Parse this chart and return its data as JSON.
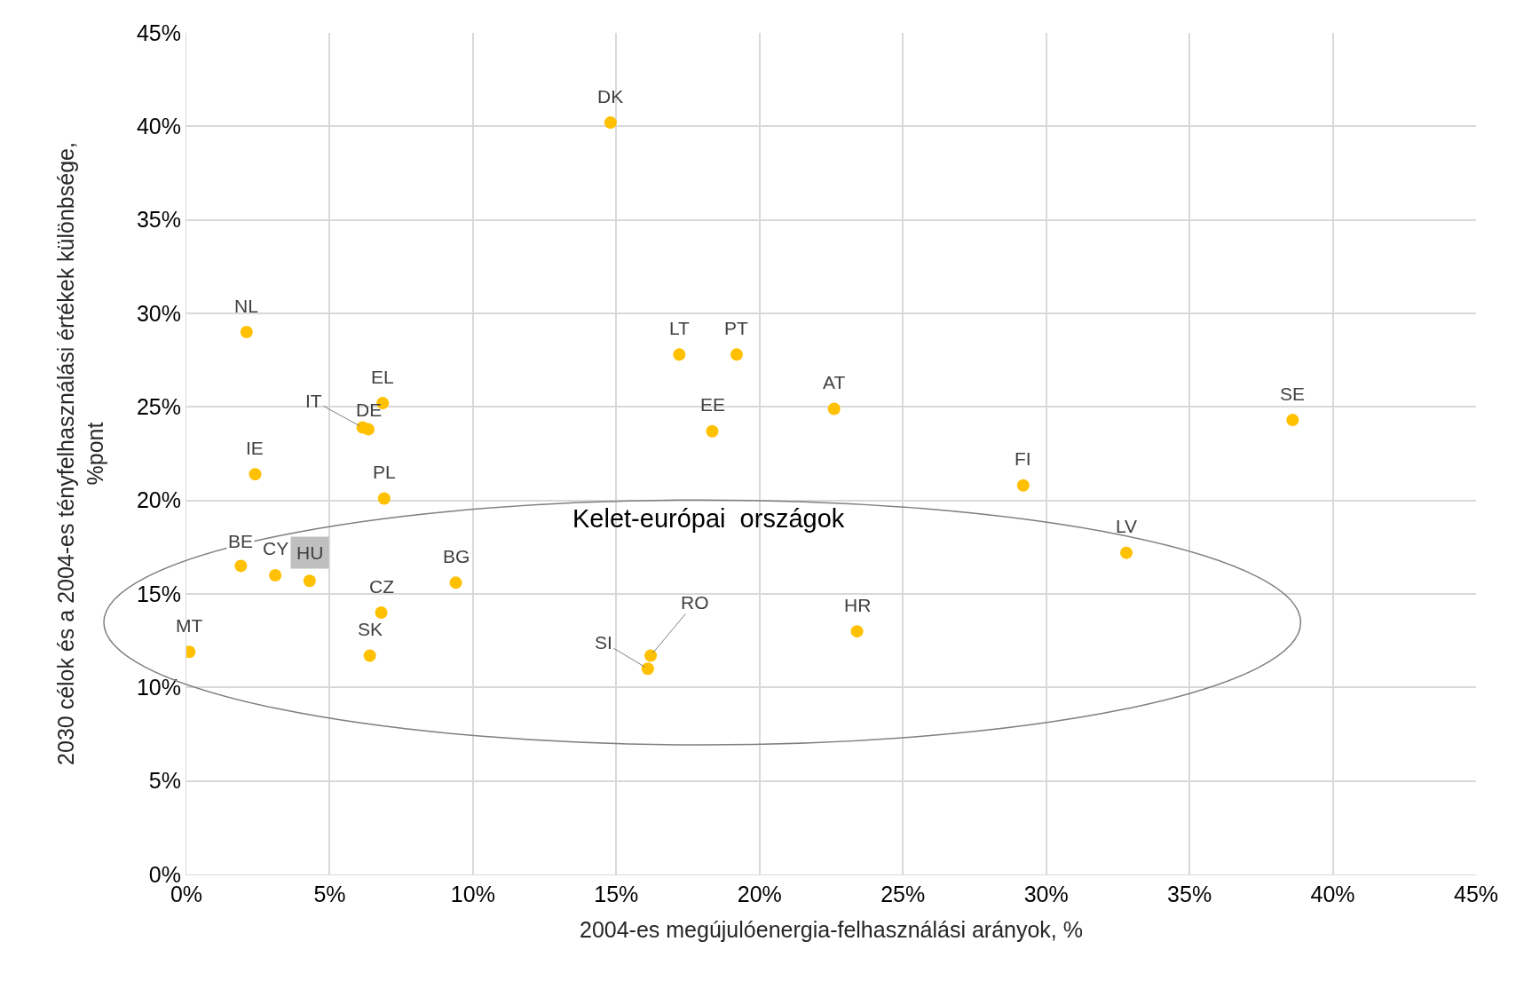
{
  "chart_data": {
    "type": "scatter",
    "xlabel": "2004-es megújulóenergia-felhasználási arányok, %",
    "ylabel": "2030 célok és a 2004-es tényfelhasználási értékek különbsége,\n%pont",
    "x": [
      14.8,
      2.1,
      17.2,
      19.2,
      6.85,
      22.6,
      38.6,
      6.15,
      6.35,
      18.35,
      2.4,
      6.9,
      29.2,
      32.8,
      1.9,
      3.1,
      4.3,
      9.4,
      6.8,
      23.4,
      0.1,
      6.4,
      16.2,
      16.1
    ],
    "values": [
      40.2,
      29.0,
      27.8,
      27.8,
      25.2,
      24.9,
      24.3,
      23.9,
      23.8,
      23.7,
      21.4,
      20.1,
      20.8,
      17.2,
      16.5,
      16.0,
      15.7,
      15.6,
      14.0,
      13.0,
      11.9,
      11.7,
      11.7,
      11.0
    ],
    "color": "#ffc000",
    "marker": "circle",
    "grid": true,
    "xlim": [
      0,
      45
    ],
    "ylim": [
      0,
      45
    ],
    "xticks": [
      {
        "value": 0,
        "label": "0%"
      },
      {
        "value": 5,
        "label": "5%"
      },
      {
        "value": 10,
        "label": "10%"
      },
      {
        "value": 15,
        "label": "15%"
      },
      {
        "value": 20,
        "label": "20%"
      },
      {
        "value": 25,
        "label": "25%"
      },
      {
        "value": 30,
        "label": "30%"
      },
      {
        "value": 35,
        "label": "35%"
      },
      {
        "value": 40,
        "label": "40%"
      },
      {
        "value": 45,
        "label": "45%"
      }
    ],
    "yticks": [
      {
        "value": 0,
        "label": "0%"
      },
      {
        "value": 5,
        "label": "5%"
      },
      {
        "value": 10,
        "label": "10%"
      },
      {
        "value": 15,
        "label": "15%"
      },
      {
        "value": 20,
        "label": "20%"
      },
      {
        "value": 25,
        "label": "25%"
      },
      {
        "value": 30,
        "label": "30%"
      },
      {
        "value": 35,
        "label": "35%"
      },
      {
        "value": 40,
        "label": "40%"
      },
      {
        "value": 45,
        "label": "45%"
      }
    ],
    "annotations": [
      {
        "text": "DK",
        "x": 14.8,
        "y": 40.2
      },
      {
        "text": "NL",
        "x": 2.1,
        "y": 29.0
      },
      {
        "text": "LT",
        "x": 17.2,
        "y": 27.8
      },
      {
        "text": "PT",
        "x": 19.2,
        "y": 27.8
      },
      {
        "text": "EL",
        "x": 6.85,
        "y": 25.2
      },
      {
        "text": "AT",
        "x": 22.6,
        "y": 24.9
      },
      {
        "text": "SE",
        "x": 38.6,
        "y": 24.3
      },
      {
        "text": "IT",
        "x": 6.15,
        "y": 23.9
      },
      {
        "text": "DE",
        "x": 6.35,
        "y": 23.8
      },
      {
        "text": "EE",
        "x": 18.35,
        "y": 23.7
      },
      {
        "text": "IE",
        "x": 2.4,
        "y": 21.4
      },
      {
        "text": "PL",
        "x": 6.9,
        "y": 20.1
      },
      {
        "text": "FI",
        "x": 29.2,
        "y": 20.8
      },
      {
        "text": "LV",
        "x": 32.8,
        "y": 17.2
      },
      {
        "text": "BE",
        "x": 1.9,
        "y": 16.5
      },
      {
        "text": "CY",
        "x": 3.1,
        "y": 16.0
      },
      {
        "text": "HU",
        "x": 4.3,
        "y": 15.7
      },
      {
        "text": "BG",
        "x": 9.4,
        "y": 15.6
      },
      {
        "text": "CZ",
        "x": 6.8,
        "y": 14.0
      },
      {
        "text": "HR",
        "x": 23.4,
        "y": 13.0
      },
      {
        "text": "MT",
        "x": 0.1,
        "y": 11.9
      },
      {
        "text": "SK",
        "x": 6.4,
        "y": 11.7
      },
      {
        "text": "RO",
        "x": 16.2,
        "y": 11.7
      },
      {
        "text": "SI",
        "x": 16.1,
        "y": 11.0
      },
      "Kelet-európai  országok"
    ]
  }
}
